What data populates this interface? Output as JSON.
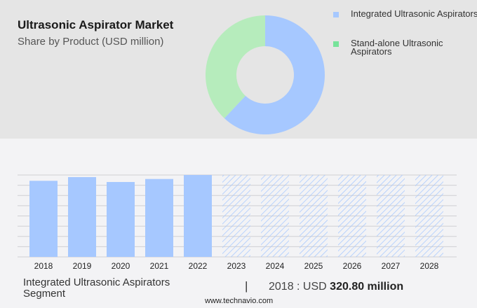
{
  "header": {
    "title": "Ultrasonic Aspirator Market",
    "subtitle": "Share by Product (USD million)"
  },
  "colors": {
    "integrated": "#a6c8ff",
    "standalone": "#b6ecbc",
    "standalone_legend": "#77e39a",
    "grid": "#cfcfd3"
  },
  "chart_data": [
    {
      "type": "pie",
      "donut": true,
      "series": [
        {
          "name": "Integrated Ultrasonic Aspirators",
          "share_percent": 62
        },
        {
          "name": "Stand-alone Ultrasonic Aspirators",
          "share_percent": 38
        }
      ],
      "legend": "top-right"
    },
    {
      "type": "bar",
      "categories": [
        "2018",
        "2019",
        "2020",
        "2021",
        "2022",
        "2023",
        "2024",
        "2025",
        "2026",
        "2027",
        "2028"
      ],
      "values": [
        320.8,
        336.4,
        315.8,
        328.5,
        345.3,
        null,
        null,
        null,
        null,
        null,
        null
      ],
      "forecast_from": "2023",
      "grid": true,
      "ylim": [
        0,
        345.3
      ]
    }
  ],
  "footer": {
    "segment": "Integrated Ultrasonic Aspirators Segment",
    "separator": "|",
    "year_prefix": "2018 : USD",
    "value": "320.80 million",
    "source": "www.technavio.com"
  }
}
